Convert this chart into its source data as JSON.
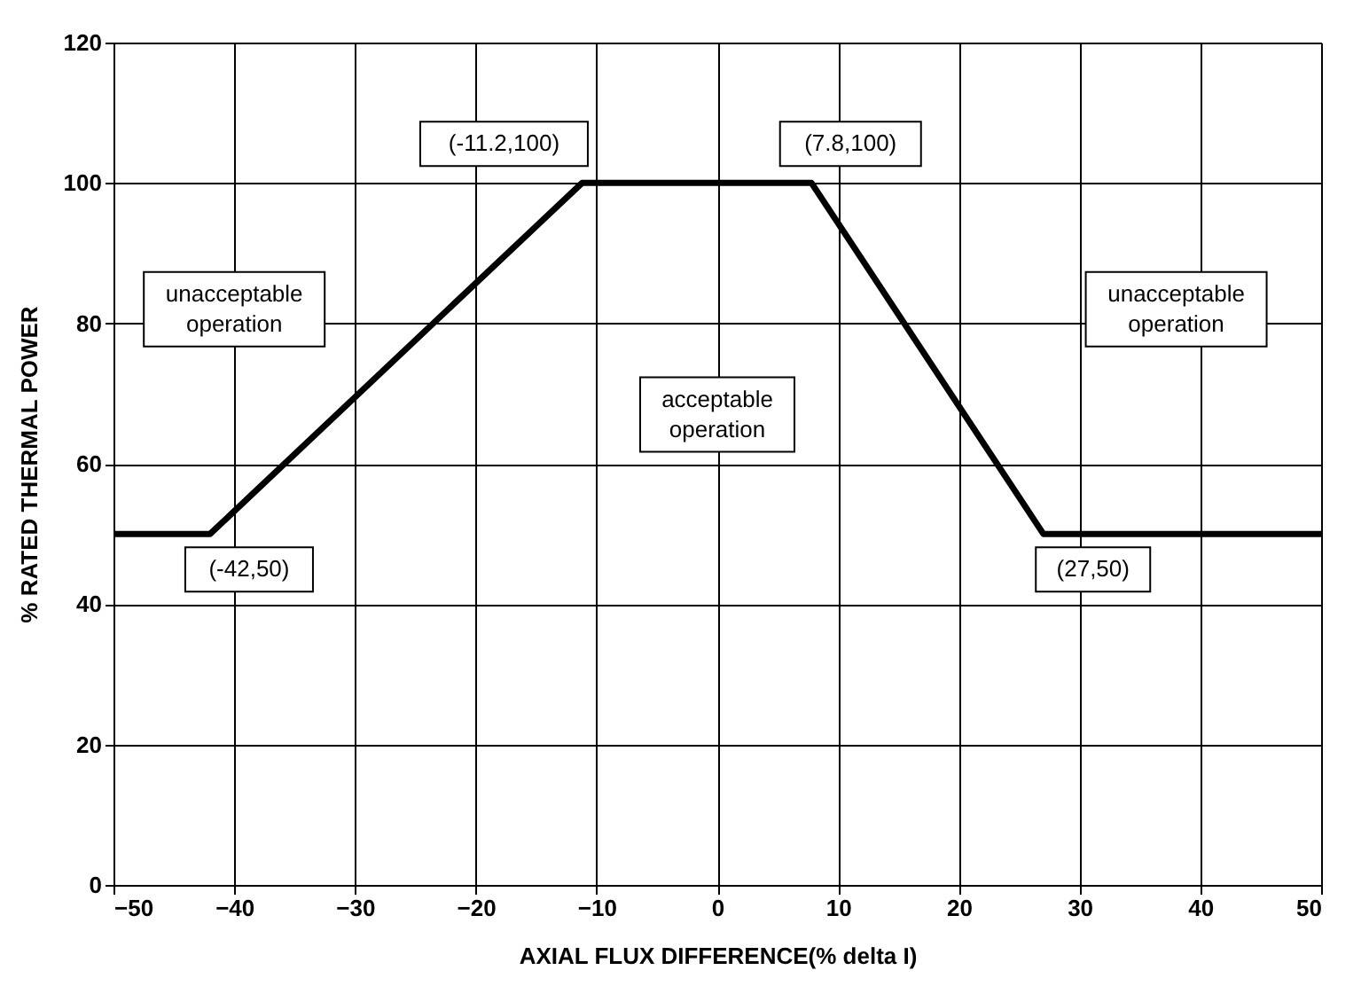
{
  "chart_data": {
    "type": "line",
    "xlabel": "AXIAL FLUX DIFFERENCE(% delta I)",
    "ylabel": "% RATED THERMAL POWER",
    "x": [
      -50,
      -42,
      -11.2,
      7.8,
      27,
      50
    ],
    "series": [
      {
        "color": "#000000",
        "values": [
          50,
          50,
          100,
          100,
          50,
          50
        ]
      }
    ],
    "xlim": [
      -50,
      50
    ],
    "xticks": [
      -50,
      -40,
      -30,
      -20,
      -10,
      0,
      10,
      20,
      30,
      40,
      50
    ],
    "ylim": [
      0,
      120
    ],
    "yticks": [
      0,
      20,
      40,
      60,
      80,
      100,
      120
    ],
    "grid": true,
    "marker": "none",
    "line_style": "solid",
    "annotations": [
      {
        "text": "(-42,50)",
        "x": -42,
        "y": 50
      },
      {
        "text": "(-11.2,100)",
        "x": -11.2,
        "y": 100
      },
      {
        "text": "(7.8,100)",
        "x": 7.8,
        "y": 100
      },
      {
        "text": "(27,50)",
        "x": 27,
        "y": 50
      },
      "unacceptable operation",
      "acceptable operation",
      "unacceptable operation"
    ]
  }
}
